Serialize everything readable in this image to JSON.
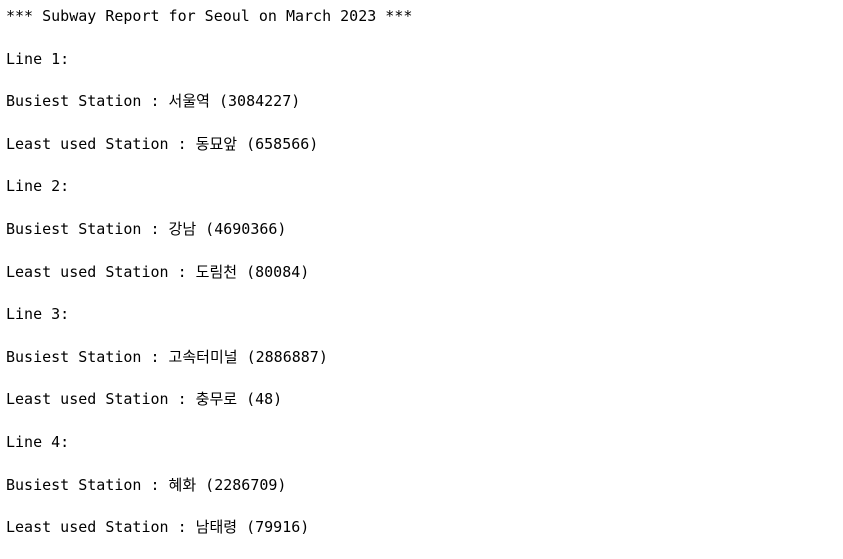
{
  "report": {
    "header": "*** Subway Report for Seoul on March 2023 ***",
    "lines": [
      {
        "line_label": "Line 1:",
        "busiest": "Busiest Station : 서울역 (3084227)",
        "least": "Least used Station : 동묘앞 (658566)"
      },
      {
        "line_label": "Line 2:",
        "busiest": "Busiest Station : 강남 (4690366)",
        "least": "Least used Station : 도림천 (80084)"
      },
      {
        "line_label": "Line 3:",
        "busiest": "Busiest Station : 고속터미널 (2886887)",
        "least": "Least used Station : 충무로 (48)"
      },
      {
        "line_label": "Line 4:",
        "busiest": "Busiest Station : 혜화 (2286709)",
        "least": "Least used Station : 남태령 (79916)"
      }
    ]
  }
}
